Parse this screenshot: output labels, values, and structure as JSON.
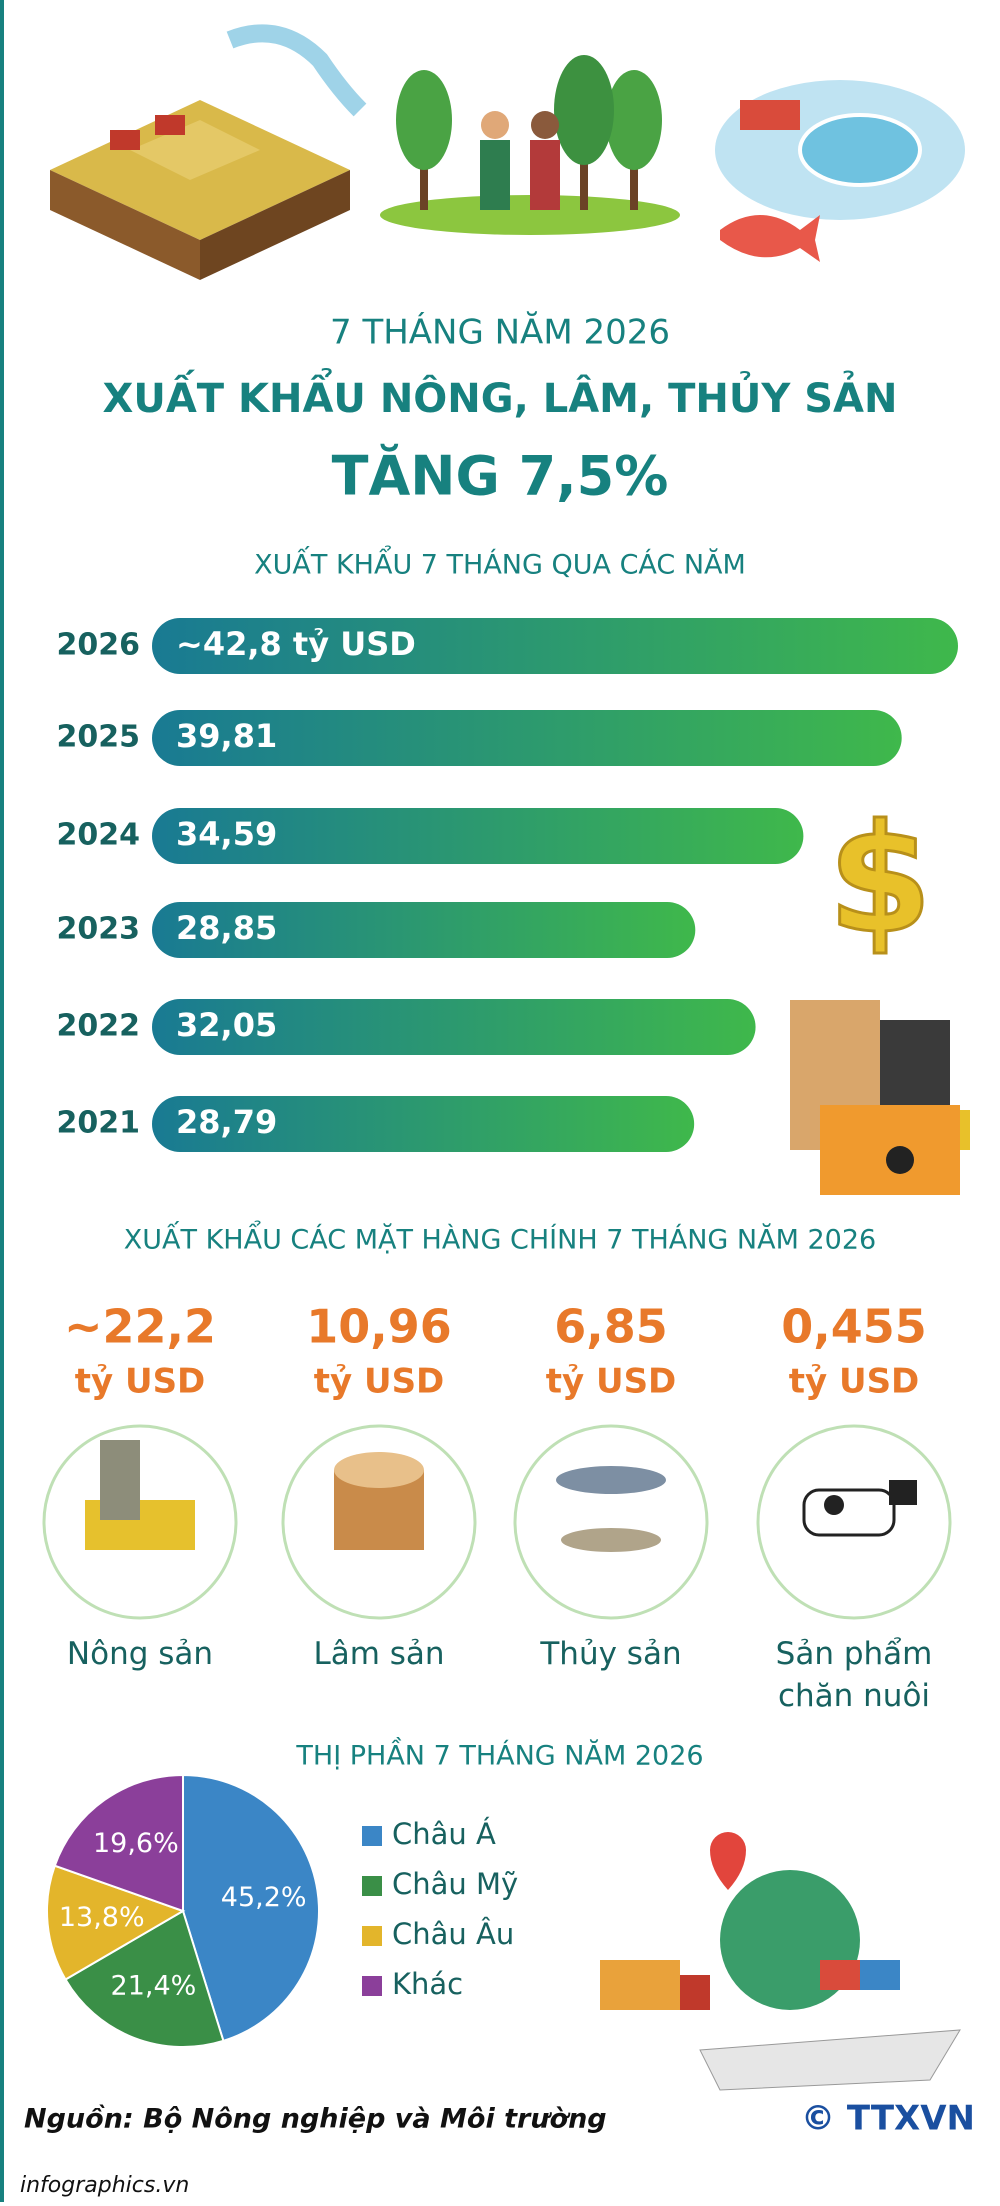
{
  "header": {
    "subtitle": "7 THÁNG NĂM 2026",
    "title": "XUẤT KHẨU NÔNG, LÂM, THỦY SẢN",
    "highlight": "TĂNG 7,5%"
  },
  "chart_data": [
    {
      "type": "bar",
      "title": "XUẤT KHẨU 7 THÁNG QUA CÁC NĂM",
      "categories": [
        "2026",
        "2025",
        "2024",
        "2023",
        "2022",
        "2021"
      ],
      "values": [
        42.8,
        39.81,
        34.59,
        28.85,
        32.05,
        28.79
      ],
      "value_labels": [
        "~42,8 tỷ USD",
        "39,81",
        "34,59",
        "28,85",
        "32,05",
        "28,79"
      ]
    },
    {
      "type": "pie",
      "title": "THỊ PHẦN 7 THÁNG NĂM 2026",
      "categories": [
        "Châu Á",
        "Châu Mỹ",
        "Châu Âu",
        "Khác"
      ],
      "values": [
        45.2,
        21.4,
        13.8,
        19.6
      ],
      "value_labels": [
        "45,2%",
        "21,4%",
        "13,8%",
        "19,6%"
      ],
      "colors": [
        "#3b86c6",
        "#3a8f47",
        "#e3b52b",
        "#8b3f9a"
      ]
    }
  ],
  "products": {
    "title": "XUẤT KHẨU CÁC MẶT HÀNG CHÍNH 7 THÁNG NĂM 2026",
    "items": [
      {
        "value": "~22,2",
        "unit": "tỷ USD",
        "name": "Nông sản"
      },
      {
        "value": "10,96",
        "unit": "tỷ USD",
        "name": "Lâm sản"
      },
      {
        "value": "6,85",
        "unit": "tỷ USD",
        "name": "Thủy sản"
      },
      {
        "value": "0,455",
        "unit": "tỷ USD",
        "name": "Sản phẩm chăn nuôi"
      }
    ]
  },
  "footer": {
    "source": "Nguồn: Bộ Nông nghiệp và Môi trường",
    "site": "infographics.vn",
    "logo": "© TTXVN"
  }
}
